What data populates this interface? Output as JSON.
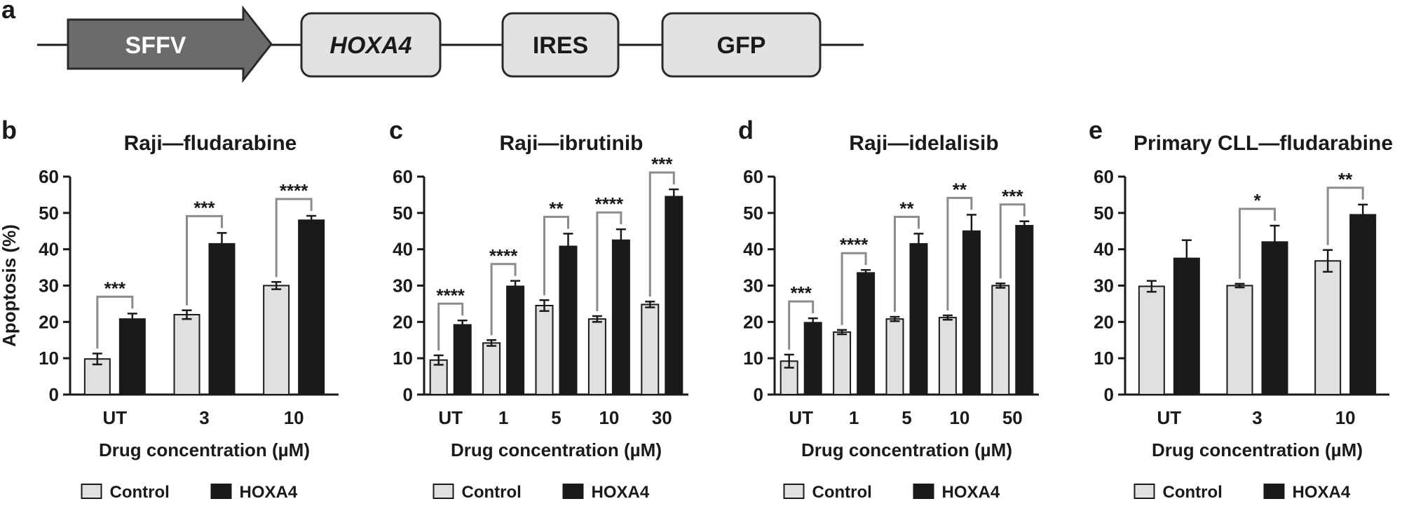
{
  "figure": {
    "panel_a": {
      "letter": "a",
      "construct": [
        {
          "label": "SFFV",
          "shape": "arrow",
          "fill": "#6b6b6b",
          "text_color": "#ffffff",
          "italic": false
        },
        {
          "label": "HOXA4",
          "shape": "box",
          "fill": "#e2e2e2",
          "text_color": "#1a1a1a",
          "italic": true
        },
        {
          "label": "IRES",
          "shape": "box",
          "fill": "#e2e2e2",
          "text_color": "#1a1a1a",
          "italic": false
        },
        {
          "label": "GFP",
          "shape": "box",
          "fill": "#e2e2e2",
          "text_color": "#1a1a1a",
          "italic": false
        }
      ]
    },
    "colors": {
      "control": "#e0e0e0",
      "hoxa4": "#1a1a1a",
      "bracket": "#8c8c8c",
      "axis": "#1a1a1a"
    }
  },
  "chart_data": [
    {
      "panel": "b",
      "type": "bar",
      "title": "Raji—fludarabine",
      "ylabel": "Apoptosis (%)",
      "xlabel": "Drug concentration (µM)",
      "ylim": [
        0,
        60
      ],
      "yticks": [
        0,
        10,
        20,
        30,
        40,
        50,
        60
      ],
      "categories": [
        "UT",
        "3",
        "10"
      ],
      "series": [
        {
          "name": "Control",
          "values": [
            9.8,
            22.0,
            30.0
          ],
          "errors": [
            1.5,
            1.2,
            1.0
          ]
        },
        {
          "name": "HOXA4",
          "values": [
            20.8,
            41.5,
            48.0
          ],
          "errors": [
            1.5,
            3.0,
            1.2
          ]
        }
      ],
      "significance": [
        "***",
        "***",
        "****"
      ],
      "legend": [
        "Control",
        "HOXA4"
      ]
    },
    {
      "panel": "c",
      "type": "bar",
      "title": "Raji—ibrutinib",
      "ylabel": "",
      "xlabel": "Drug concentration (µM)",
      "ylim": [
        0,
        60
      ],
      "yticks": [
        0,
        10,
        20,
        30,
        40,
        50,
        60
      ],
      "categories": [
        "UT",
        "1",
        "5",
        "10",
        "30"
      ],
      "series": [
        {
          "name": "Control",
          "values": [
            9.5,
            14.2,
            24.5,
            20.8,
            24.8
          ],
          "errors": [
            1.3,
            0.8,
            1.5,
            0.8,
            0.8
          ]
        },
        {
          "name": "HOXA4",
          "values": [
            19.2,
            29.8,
            40.8,
            42.5,
            54.5
          ],
          "errors": [
            1.2,
            1.5,
            3.5,
            3.0,
            2.0
          ]
        }
      ],
      "significance": [
        "****",
        "****",
        "**",
        "****",
        "***"
      ],
      "legend": [
        "Control",
        "HOXA4"
      ]
    },
    {
      "panel": "d",
      "type": "bar",
      "title": "Raji—idelalisib",
      "ylabel": "",
      "xlabel": "Drug concentration (µM)",
      "ylim": [
        0,
        60
      ],
      "yticks": [
        0,
        10,
        20,
        30,
        40,
        50,
        60
      ],
      "categories": [
        "UT",
        "1",
        "5",
        "10",
        "50"
      ],
      "series": [
        {
          "name": "Control",
          "values": [
            9.2,
            17.2,
            20.8,
            21.2,
            30.0
          ],
          "errors": [
            1.8,
            0.6,
            0.6,
            0.6,
            0.6
          ]
        },
        {
          "name": "HOXA4",
          "values": [
            19.8,
            33.5,
            41.5,
            45.0,
            46.5
          ],
          "errors": [
            1.2,
            0.8,
            2.8,
            4.5,
            1.2
          ]
        }
      ],
      "significance": [
        "***",
        "****",
        "**",
        "**",
        "***"
      ],
      "legend": [
        "Control",
        "HOXA4"
      ]
    },
    {
      "panel": "e",
      "type": "bar",
      "title": "Primary CLL—fludarabine",
      "ylabel": "",
      "xlabel": "Drug concentration (µM)",
      "ylim": [
        0,
        60
      ],
      "yticks": [
        0,
        10,
        20,
        30,
        40,
        50,
        60
      ],
      "categories": [
        "UT",
        "3",
        "10"
      ],
      "series": [
        {
          "name": "Control",
          "values": [
            29.8,
            30.0,
            36.8
          ],
          "errors": [
            1.5,
            0.5,
            3.0
          ]
        },
        {
          "name": "HOXA4",
          "values": [
            37.5,
            42.0,
            49.5
          ],
          "errors": [
            5.0,
            4.5,
            2.8
          ]
        }
      ],
      "significance": [
        null,
        "*",
        "**"
      ],
      "legend": [
        "Control",
        "HOXA4"
      ]
    }
  ]
}
